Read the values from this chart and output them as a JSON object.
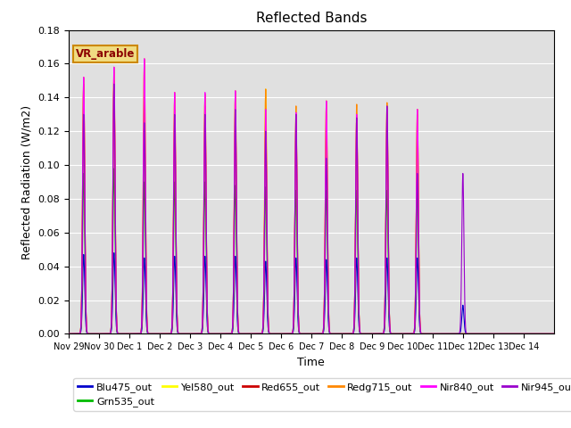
{
  "title": "Reflected Bands",
  "xlabel": "Time",
  "ylabel": "Reflected Radiation (W/m2)",
  "annotation": "VR_arable",
  "ylim": [
    0,
    0.18
  ],
  "background_color": "#e0e0e0",
  "series": {
    "Blu475_out": {
      "color": "#0000cc"
    },
    "Grn535_out": {
      "color": "#00bb00"
    },
    "Yel580_out": {
      "color": "#ffff00"
    },
    "Red655_out": {
      "color": "#cc0000"
    },
    "Redg715_out": {
      "color": "#ff8800"
    },
    "Nir840_out": {
      "color": "#ff00ff"
    },
    "Nir945_out": {
      "color": "#9900cc"
    }
  },
  "tick_labels": [
    "Nov 29",
    "Nov 30",
    "Dec 1",
    "Dec 2",
    "Dec 3",
    "Dec 4",
    "Dec 5",
    "Dec 6",
    "Dec 7",
    "Dec 8",
    "Dec 9",
    "Dec 10",
    "Dec 11",
    "Dec 12",
    "Dec 13",
    "Dec 14"
  ],
  "n_days": 16,
  "ppd": 1440,
  "peaks": [
    {
      "day": 0.5,
      "blu": 0.047,
      "grn": 0.095,
      "yel": 0.148,
      "red": 0.148,
      "redg": 0.152,
      "nir8": 0.152,
      "nir9": 0.13
    },
    {
      "day": 1.5,
      "blu": 0.048,
      "grn": 0.098,
      "yel": 0.155,
      "red": 0.15,
      "redg": 0.158,
      "nir8": 0.158,
      "nir9": 0.148
    },
    {
      "day": 2.5,
      "blu": 0.045,
      "grn": 0.09,
      "yel": 0.162,
      "red": 0.14,
      "redg": 0.163,
      "nir8": 0.163,
      "nir9": 0.125
    },
    {
      "day": 3.5,
      "blu": 0.046,
      "grn": 0.09,
      "yel": 0.141,
      "red": 0.133,
      "redg": 0.143,
      "nir8": 0.143,
      "nir9": 0.13
    },
    {
      "day": 4.5,
      "blu": 0.046,
      "grn": 0.09,
      "yel": 0.142,
      "red": 0.135,
      "redg": 0.142,
      "nir8": 0.143,
      "nir9": 0.13
    },
    {
      "day": 5.5,
      "blu": 0.046,
      "grn": 0.088,
      "yel": 0.143,
      "red": 0.135,
      "redg": 0.144,
      "nir8": 0.144,
      "nir9": 0.133
    },
    {
      "day": 6.5,
      "blu": 0.043,
      "grn": 0.087,
      "yel": 0.145,
      "red": 0.128,
      "redg": 0.145,
      "nir8": 0.133,
      "nir9": 0.12
    },
    {
      "day": 7.5,
      "blu": 0.045,
      "grn": 0.085,
      "yel": 0.13,
      "red": 0.128,
      "redg": 0.135,
      "nir8": 0.131,
      "nir9": 0.13
    },
    {
      "day": 8.5,
      "blu": 0.044,
      "grn": 0.085,
      "yel": 0.138,
      "red": 0.13,
      "redg": 0.138,
      "nir8": 0.138,
      "nir9": 0.104
    },
    {
      "day": 9.5,
      "blu": 0.045,
      "grn": 0.085,
      "yel": 0.128,
      "red": 0.128,
      "redg": 0.136,
      "nir8": 0.13,
      "nir9": 0.128
    },
    {
      "day": 10.5,
      "blu": 0.045,
      "grn": 0.085,
      "yel": 0.135,
      "red": 0.13,
      "redg": 0.137,
      "nir8": 0.133,
      "nir9": 0.135
    },
    {
      "day": 11.5,
      "blu": 0.045,
      "grn": 0.085,
      "yel": 0.133,
      "red": 0.13,
      "redg": 0.133,
      "nir8": 0.133,
      "nir9": 0.095
    },
    {
      "day": 13.0,
      "blu": 0.017,
      "grn": 0.0,
      "yel": 0.0,
      "red": 0.0,
      "redg": 0.0,
      "nir8": 0.0,
      "nir9": 0.095
    }
  ]
}
